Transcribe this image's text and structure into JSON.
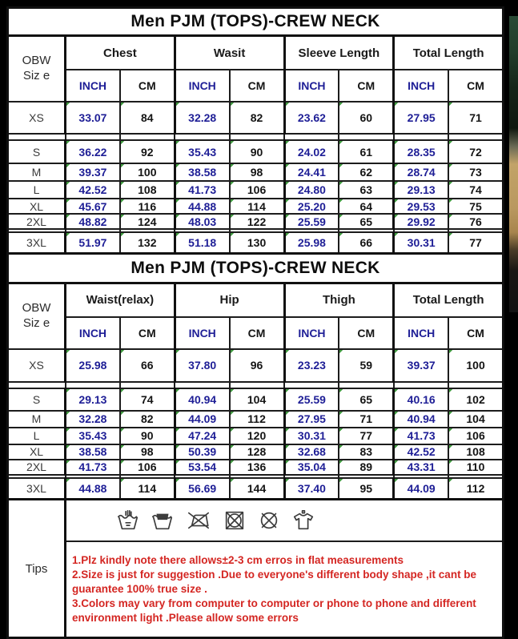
{
  "table1": {
    "title": "Men PJM (TOPS)-CREW NECK",
    "corner": [
      "OBW",
      "Siz e"
    ],
    "groups": [
      "Chest",
      "Wasit",
      "Sleeve Length",
      "Total Length"
    ],
    "units": [
      "INCH",
      "CM"
    ],
    "rows": [
      {
        "size": "XS",
        "values": [
          "33.07",
          "84",
          "32.28",
          "82",
          "23.62",
          "60",
          "27.95",
          "71"
        ]
      },
      {
        "size": "S",
        "values": [
          "36.22",
          "92",
          "35.43",
          "90",
          "24.02",
          "61",
          "28.35",
          "72"
        ]
      },
      {
        "size": "M",
        "values": [
          "39.37",
          "100",
          "38.58",
          "98",
          "24.41",
          "62",
          "28.74",
          "73"
        ]
      },
      {
        "size": "L",
        "values": [
          "42.52",
          "108",
          "41.73",
          "106",
          "24.80",
          "63",
          "29.13",
          "74"
        ]
      },
      {
        "size": "XL",
        "values": [
          "45.67",
          "116",
          "44.88",
          "114",
          "25.20",
          "64",
          "29.53",
          "75"
        ]
      },
      {
        "size": "2XL",
        "values": [
          "48.82",
          "124",
          "48.03",
          "122",
          "25.59",
          "65",
          "29.92",
          "76"
        ]
      },
      {
        "size": "3XL",
        "values": [
          "51.97",
          "132",
          "51.18",
          "130",
          "25.98",
          "66",
          "30.31",
          "77"
        ]
      }
    ]
  },
  "table2": {
    "title": "Men PJM (TOPS)-CREW NECK",
    "corner": [
      "OBW",
      "Siz e"
    ],
    "groups": [
      "Waist(relax)",
      "Hip",
      "Thigh",
      "Total Length"
    ],
    "units": [
      "INCH",
      "CM"
    ],
    "rows": [
      {
        "size": "XS",
        "values": [
          "25.98",
          "66",
          "37.80",
          "96",
          "23.23",
          "59",
          "39.37",
          "100"
        ]
      },
      {
        "size": "S",
        "values": [
          "29.13",
          "74",
          "40.94",
          "104",
          "25.59",
          "65",
          "40.16",
          "102"
        ]
      },
      {
        "size": "M",
        "values": [
          "32.28",
          "82",
          "44.09",
          "112",
          "27.95",
          "71",
          "40.94",
          "104"
        ]
      },
      {
        "size": "L",
        "values": [
          "35.43",
          "90",
          "47.24",
          "120",
          "30.31",
          "77",
          "41.73",
          "106"
        ]
      },
      {
        "size": "XL",
        "values": [
          "38.58",
          "98",
          "50.39",
          "128",
          "32.68",
          "83",
          "42.52",
          "108"
        ]
      },
      {
        "size": "2XL",
        "values": [
          "41.73",
          "106",
          "53.54",
          "136",
          "35.04",
          "89",
          "43.31",
          "110"
        ]
      },
      {
        "size": "3XL",
        "values": [
          "44.88",
          "114",
          "56.69",
          "144",
          "37.40",
          "95",
          "44.09",
          "112"
        ]
      }
    ]
  },
  "care_icons": [
    "hand-wash-icon",
    "do-not-wash-icon",
    "do-not-iron-icon",
    "do-not-tumble-dry-icon",
    "do-not-dry-clean-icon",
    "drip-dry-garment-icon"
  ],
  "tips": {
    "label": "Tips",
    "lines": [
      "1.Plz kindly note there allows±2-3 cm erros in flat  measurements",
      "2.Size is just for suggestion .Due to everyone's different body shape ,it cant be guarantee 100% true size .",
      "3.Colors may  vary from computer to computer or phone to phone and different environment light .Please allow some errors"
    ]
  },
  "colors": {
    "inch_text": "#1e1e96",
    "cm_text": "#141414",
    "tips_text": "#d42622",
    "border": "#1c1c1c",
    "background": "#000000"
  }
}
